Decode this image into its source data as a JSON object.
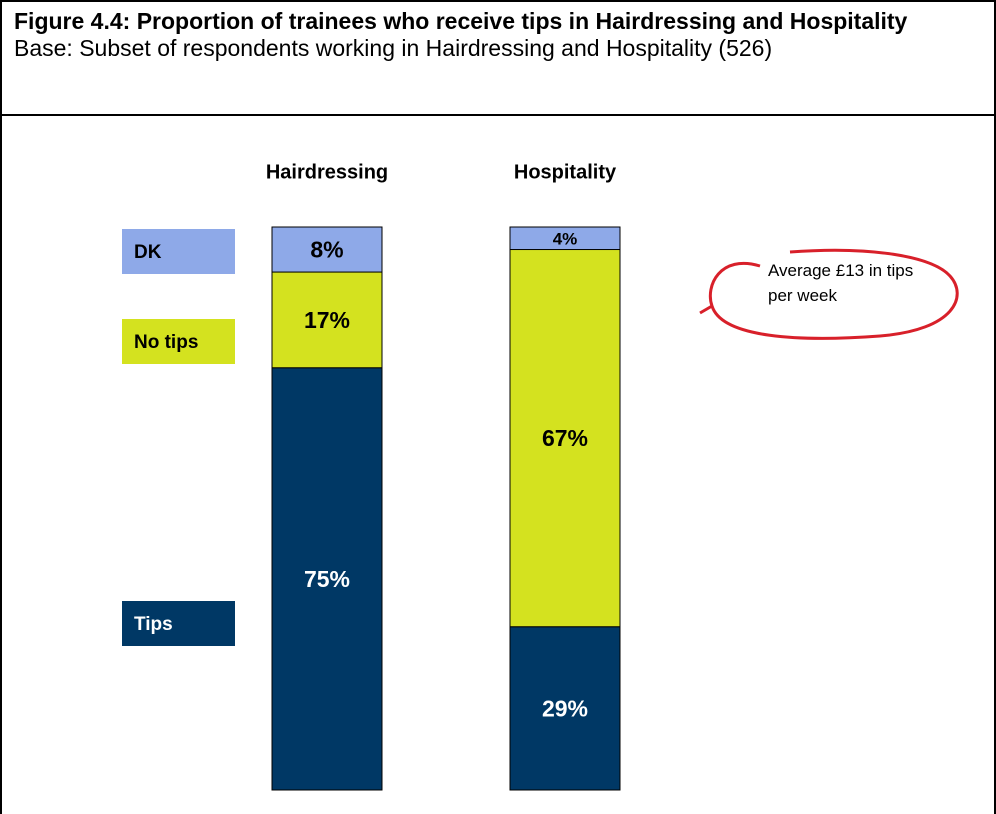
{
  "chart_data": {
    "type": "stacked_bar",
    "title": "Figure 4.4: Proportion of trainees who receive tips in Hairdressing and Hospitality",
    "subtitle": "Base: Subset of respondents working in Hairdressing and Hospitality (526)",
    "categories": [
      "Hairdressing",
      "Hospitality"
    ],
    "series": [
      {
        "name": "Tips",
        "color": "#003865",
        "values": [
          75,
          29
        ],
        "value_labels": [
          "75%",
          "29%"
        ]
      },
      {
        "name": "No tips",
        "color": "#d4e21f",
        "values": [
          17,
          67
        ],
        "value_labels": [
          "17%",
          "67%"
        ]
      },
      {
        "name": "DK",
        "color": "#8ea9e8",
        "values": [
          8,
          4
        ],
        "value_labels": [
          "8%",
          "4%"
        ]
      }
    ],
    "ylim": [
      0,
      100
    ],
    "annotation": "Average £13 in tips per week"
  }
}
